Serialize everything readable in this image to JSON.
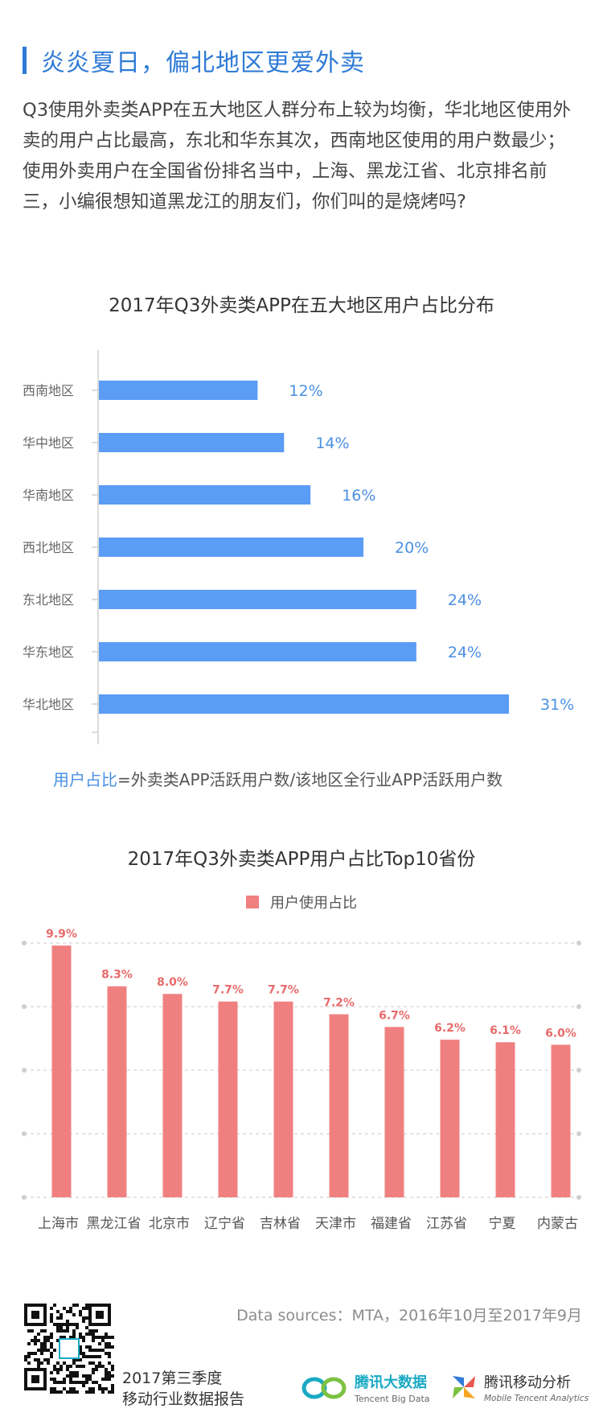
{
  "section": {
    "title": "炎炎夏日，偏北地区更爱外卖"
  },
  "intro": {
    "p1": "Q3使用外卖类APP在五大地区人群分布上较为均衡，华北地区使用外卖的用户占比最高，东北和华东其次，西南地区使用的用户数最少；",
    "p2": "使用外卖用户在全国省份排名当中，上海、黑龙江省、北京排名前三，小编很想知道黑龙江的朋友们，你们叫的是烧烤吗?"
  },
  "formula": {
    "highlight": "用户占比",
    "rest": "=外卖类APP活跃用户数/该地区全行业APP活跃用户数"
  },
  "colors": {
    "title_blue": "#2f7bd6",
    "bar_blue": "#5b9cf5",
    "label_blue": "#4a90e2",
    "bar_red": "#f08080",
    "label_red": "#e86a6a"
  },
  "chart_data": [
    {
      "type": "bar",
      "orientation": "horizontal",
      "title": "2017年Q3外卖类APP在五大地区用户占比分布",
      "categories": [
        "西南地区",
        "华中地区",
        "华南地区",
        "西北地区",
        "东北地区",
        "华东地区",
        "华北地区"
      ],
      "values": [
        12,
        14,
        16,
        20,
        24,
        24,
        31
      ],
      "value_labels": [
        "12%",
        "14%",
        "16%",
        "20%",
        "24%",
        "24%",
        "31%"
      ],
      "unit": "%",
      "grid": false
    },
    {
      "type": "bar",
      "orientation": "vertical",
      "title": "2017年Q3外卖类APP用户占比Top10省份",
      "legend": "用户使用占比",
      "legend_position": "top",
      "categories": [
        "上海市",
        "黑龙江省",
        "北京市",
        "辽宁省",
        "吉林省",
        "天津市",
        "福建省",
        "江苏省",
        "宁夏",
        "内蒙古"
      ],
      "values": [
        9.9,
        8.3,
        8.0,
        7.7,
        7.7,
        7.2,
        6.7,
        6.2,
        6.1,
        6.0
      ],
      "value_labels": [
        "9.9%",
        "8.3%",
        "8.0%",
        "7.7%",
        "7.7%",
        "7.2%",
        "6.7%",
        "6.2%",
        "6.1%",
        "6.0%"
      ],
      "unit": "%",
      "ylim": [
        0,
        10
      ],
      "grid": true
    }
  ],
  "footer": {
    "sources": "Data sources：MTA，2016年10月至2017年9月",
    "report_line1": "2017第三季度",
    "report_line2": "移动行业数据报告",
    "brand1_name": "腾讯大数据",
    "brand1_sub": "Tencent Big Data",
    "brand2_name": "腾讯移动分析",
    "brand2_sub": "Mobile Tencent Analytics",
    "qr_icon": "qr-code-icon"
  }
}
